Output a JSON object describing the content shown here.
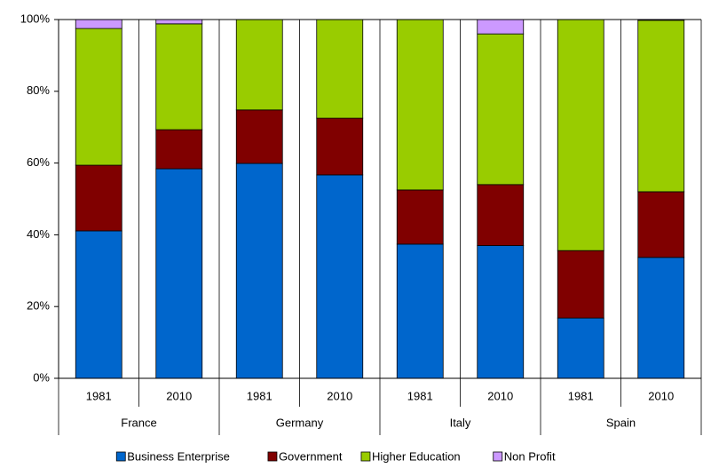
{
  "chart_data": {
    "type": "stacked-bar-100",
    "categories": [
      "1981",
      "2010",
      "1981",
      "2010",
      "1981",
      "2010",
      "1981",
      "2010"
    ],
    "groups": [
      "France",
      "Germany",
      "Italy",
      "Spain"
    ],
    "series": [
      {
        "name": "Business Enterprise",
        "color": "#0066cc",
        "values": [
          41.1,
          58.4,
          59.9,
          56.7,
          37.4,
          37.0,
          16.8,
          33.7
        ]
      },
      {
        "name": "Government",
        "color": "#800000",
        "values": [
          18.3,
          10.9,
          14.9,
          15.8,
          15.1,
          17.0,
          18.8,
          18.3
        ]
      },
      {
        "name": "Higher Education",
        "color": "#99cc00",
        "values": [
          38.1,
          29.5,
          25.2,
          27.5,
          47.5,
          42.0,
          64.4,
          47.8
        ]
      },
      {
        "name": "Non Profit",
        "color": "#cc99ff",
        "values": [
          2.5,
          1.2,
          0,
          0,
          0,
          4.0,
          0,
          0.2
        ]
      }
    ],
    "ylim": [
      0,
      100
    ],
    "yticks": [
      {
        "value": 0,
        "label": "0%"
      },
      {
        "value": 20,
        "label": "20%"
      },
      {
        "value": 40,
        "label": "40%"
      },
      {
        "value": 60,
        "label": "60%"
      },
      {
        "value": 80,
        "label": "80%"
      },
      {
        "value": 100,
        "label": "100%"
      }
    ],
    "legend": "bottom"
  }
}
